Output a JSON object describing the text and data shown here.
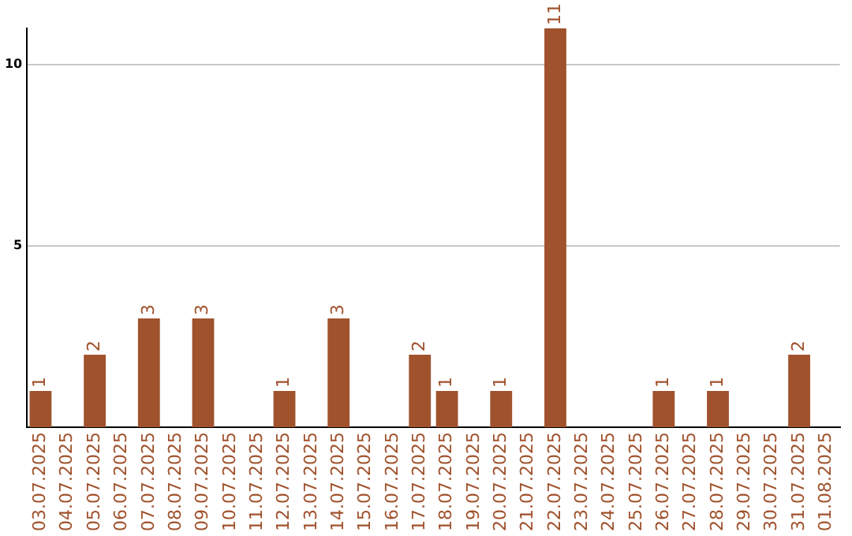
{
  "chart_data": {
    "type": "bar",
    "categories": [
      "03.07.2025",
      "04.07.2025",
      "05.07.2025",
      "06.07.2025",
      "07.07.2025",
      "08.07.2025",
      "09.07.2025",
      "10.07.2025",
      "11.07.2025",
      "12.07.2025",
      "13.07.2025",
      "14.07.2025",
      "15.07.2025",
      "16.07.2025",
      "17.07.2025",
      "18.07.2025",
      "19.07.2025",
      "20.07.2025",
      "21.07.2025",
      "22.07.2025",
      "23.07.2025",
      "24.07.2025",
      "25.07.2025",
      "26.07.2025",
      "27.07.2025",
      "28.07.2025",
      "29.07.2025",
      "30.07.2025",
      "31.07.2025",
      "01.08.2025"
    ],
    "values": [
      1,
      0,
      2,
      0,
      3,
      0,
      3,
      0,
      0,
      1,
      0,
      3,
      0,
      0,
      2,
      1,
      0,
      1,
      0,
      11,
      0,
      0,
      0,
      1,
      0,
      1,
      0,
      0,
      2,
      0
    ],
    "value_labels": [
      "1",
      null,
      "2",
      null,
      "3",
      null,
      "3",
      null,
      null,
      "1",
      null,
      "3",
      null,
      null,
      "2",
      "1",
      null,
      "1",
      null,
      "11",
      null,
      null,
      null,
      "1",
      null,
      "1",
      null,
      null,
      "2",
      null
    ],
    "color": "#a0522d",
    "ylim": [
      0,
      11
    ],
    "yticks": [
      5,
      10
    ],
    "grid": "y",
    "legend": false
  }
}
